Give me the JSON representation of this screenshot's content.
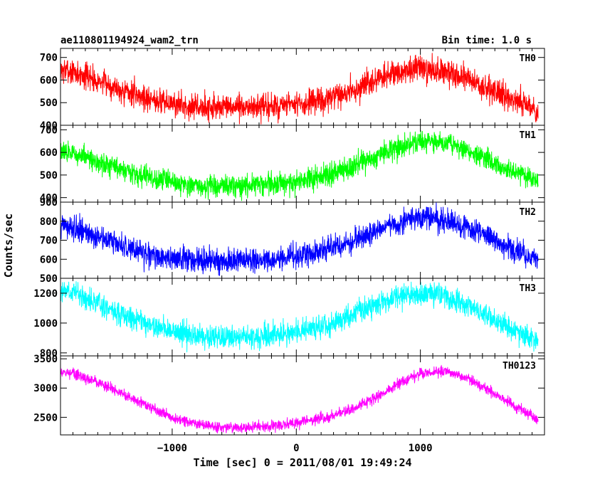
{
  "chart_data": {
    "type": "line",
    "title_left": "ae110801194924_wam2_trn",
    "title_right": "Bin time: 1.0 s",
    "xlabel": "Time [sec] 0 = 2011/08/01 19:49:24",
    "ylabel": "Counts/sec",
    "xlim": [
      -1900,
      2000
    ],
    "x_ticks": [
      -1000,
      0,
      1000
    ],
    "x_tick_labels": [
      "−1000",
      "0",
      "1000"
    ],
    "grid": false,
    "panels": [
      {
        "label": "TH0",
        "color": "#ff0000",
        "ylim": [
          400,
          740
        ],
        "y_ticks": [
          400,
          500,
          600,
          700
        ],
        "noise": 40,
        "x": [
          -1950,
          -1800,
          -1600,
          -1400,
          -1200,
          -1000,
          -800,
          -600,
          -400,
          -200,
          0,
          200,
          400,
          600,
          800,
          1000,
          1200,
          1400,
          1600,
          1800,
          1950
        ],
        "mean": [
          650,
          635,
          600,
          555,
          520,
          495,
          480,
          480,
          480,
          480,
          490,
          505,
          540,
          590,
          630,
          650,
          640,
          600,
          550,
          500,
          460
        ]
      },
      {
        "label": "TH1",
        "color": "#00ff00",
        "ylim": [
          380,
          720
        ],
        "y_ticks": [
          400,
          500,
          600,
          700
        ],
        "noise": 35,
        "x": [
          -1950,
          -1800,
          -1600,
          -1400,
          -1200,
          -1000,
          -800,
          -600,
          -400,
          -200,
          0,
          200,
          400,
          600,
          800,
          1000,
          1200,
          1400,
          1600,
          1800,
          1950
        ],
        "mean": [
          610,
          595,
          560,
          520,
          490,
          465,
          450,
          450,
          455,
          460,
          470,
          490,
          520,
          570,
          620,
          650,
          640,
          600,
          550,
          505,
          475
        ]
      },
      {
        "label": "TH2",
        "color": "#0000ff",
        "ylim": [
          500,
          900
        ],
        "y_ticks": [
          500,
          600,
          700,
          800,
          900
        ],
        "noise": 45,
        "x": [
          -1950,
          -1800,
          -1600,
          -1400,
          -1200,
          -1000,
          -800,
          -600,
          -400,
          -200,
          0,
          200,
          400,
          600,
          800,
          1000,
          1200,
          1400,
          1600,
          1800,
          1950
        ],
        "mean": [
          780,
          765,
          720,
          670,
          630,
          605,
          595,
          595,
          595,
          600,
          615,
          640,
          680,
          740,
          790,
          820,
          810,
          760,
          700,
          640,
          600
        ]
      },
      {
        "label": "TH3",
        "color": "#00ffff",
        "ylim": [
          780,
          1300
        ],
        "y_ticks": [
          800,
          1000,
          1200
        ],
        "noise": 55,
        "x": [
          -1950,
          -1800,
          -1600,
          -1400,
          -1200,
          -1000,
          -800,
          -600,
          -400,
          -200,
          0,
          200,
          400,
          600,
          800,
          1000,
          1200,
          1400,
          1600,
          1800,
          1950
        ],
        "mean": [
          1230,
          1205,
          1135,
          1060,
          995,
          945,
          915,
          905,
          905,
          915,
          935,
          975,
          1035,
          1110,
          1175,
          1200,
          1180,
          1110,
          1020,
          935,
          870
        ]
      },
      {
        "label": "TH0123",
        "color": "#ff00ff",
        "ylim": [
          2200,
          3550
        ],
        "y_ticks": [
          2500,
          3000,
          3500
        ],
        "noise": 65,
        "x": [
          -1950,
          -1800,
          -1600,
          -1400,
          -1200,
          -1000,
          -800,
          -600,
          -400,
          -200,
          0,
          200,
          400,
          600,
          800,
          1000,
          1200,
          1400,
          1600,
          1800,
          1950
        ],
        "mean": [
          3300,
          3250,
          3100,
          2900,
          2700,
          2500,
          2380,
          2330,
          2330,
          2350,
          2400,
          2480,
          2600,
          2800,
          3050,
          3250,
          3300,
          3150,
          2900,
          2650,
          2450
        ]
      }
    ]
  }
}
